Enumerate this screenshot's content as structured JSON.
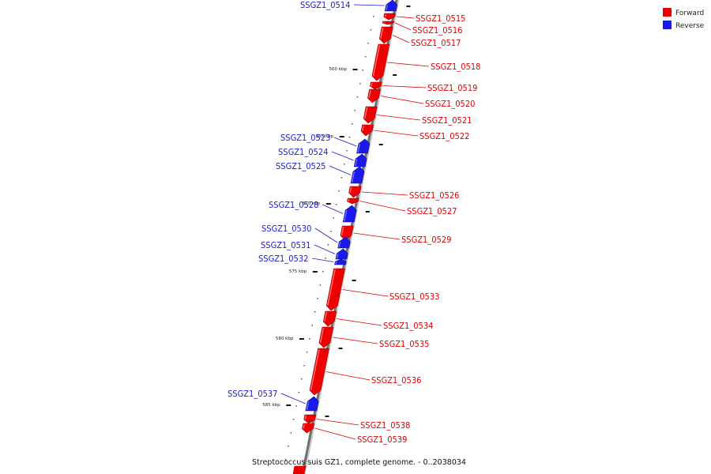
{
  "legend": {
    "forward": {
      "label": "Forward",
      "color": "#ee0000"
    },
    "reverse": {
      "label": "Reverse",
      "color": "#1a1aee"
    }
  },
  "caption": "Streptococcus suis GZ1, complete genome. - 0..2038034",
  "ticks": [
    {
      "label": "560 kbp"
    },
    {
      "label": "565 kbp"
    },
    {
      "label": "570 kbp"
    },
    {
      "label": "575 kbp"
    },
    {
      "label": "580 kbp"
    },
    {
      "label": "585 kbp"
    }
  ],
  "genes": [
    {
      "name": "SSGZ1_0514",
      "strand": "reverse"
    },
    {
      "name": "SSGZ1_0515",
      "strand": "forward"
    },
    {
      "name": "SSGZ1_0516",
      "strand": "forward"
    },
    {
      "name": "SSGZ1_0517",
      "strand": "forward"
    },
    {
      "name": "SSGZ1_0518",
      "strand": "forward"
    },
    {
      "name": "SSGZ1_0519",
      "strand": "forward"
    },
    {
      "name": "SSGZ1_0520",
      "strand": "forward"
    },
    {
      "name": "SSGZ1_0521",
      "strand": "forward"
    },
    {
      "name": "SSGZ1_0522",
      "strand": "forward"
    },
    {
      "name": "SSGZ1_0523",
      "strand": "reverse"
    },
    {
      "name": "SSGZ1_0524",
      "strand": "reverse"
    },
    {
      "name": "SSGZ1_0525",
      "strand": "reverse"
    },
    {
      "name": "SSGZ1_0526",
      "strand": "forward"
    },
    {
      "name": "SSGZ1_0527",
      "strand": "forward"
    },
    {
      "name": "SSGZ1_0528",
      "strand": "reverse"
    },
    {
      "name": "SSGZ1_0529",
      "strand": "forward"
    },
    {
      "name": "SSGZ1_0530",
      "strand": "reverse"
    },
    {
      "name": "SSGZ1_0531",
      "strand": "reverse"
    },
    {
      "name": "SSGZ1_0532",
      "strand": "reverse"
    },
    {
      "name": "SSGZ1_0533",
      "strand": "forward"
    },
    {
      "name": "SSGZ1_0534",
      "strand": "forward"
    },
    {
      "name": "SSGZ1_0535",
      "strand": "forward"
    },
    {
      "name": "SSGZ1_0536",
      "strand": "forward"
    },
    {
      "name": "SSGZ1_0537",
      "strand": "reverse"
    },
    {
      "name": "SSGZ1_0538",
      "strand": "forward"
    },
    {
      "name": "SSGZ1_0539",
      "strand": "forward"
    }
  ]
}
